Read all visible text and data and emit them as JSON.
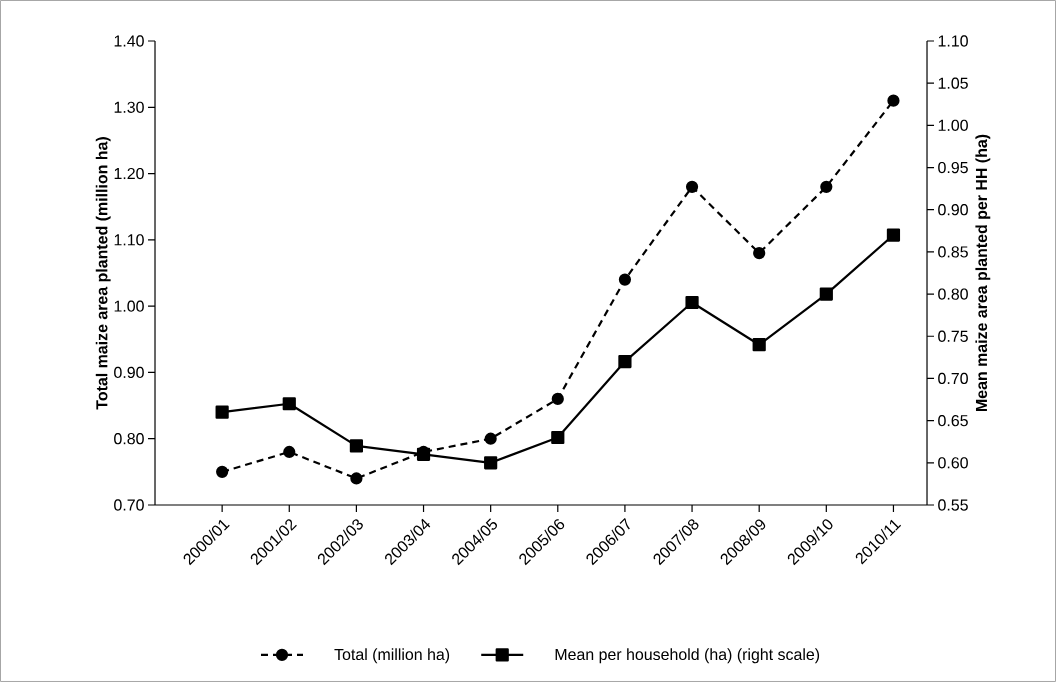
{
  "chart_data": {
    "type": "line",
    "categories": [
      "2000/01",
      "2001/02",
      "2002/03",
      "2003/04",
      "2004/05",
      "2005/06",
      "2006/07",
      "2007/08",
      "2008/09",
      "2009/10",
      "2010/11"
    ],
    "ylabel": "Total maize area planted (million ha)",
    "y2label": "Mean maize area planted per HH (ha)",
    "ylim": [
      0.7,
      1.4
    ],
    "yticks": [
      {
        "value": 0.7,
        "label": "0.70"
      },
      {
        "value": 0.8,
        "label": "0.80"
      },
      {
        "value": 0.9,
        "label": "0.90"
      },
      {
        "value": 1.0,
        "label": "1.00"
      },
      {
        "value": 1.1,
        "label": "1.10"
      },
      {
        "value": 1.2,
        "label": "1.20"
      },
      {
        "value": 1.3,
        "label": "1.30"
      },
      {
        "value": 1.4,
        "label": "1.40"
      }
    ],
    "y2lim": [
      0.55,
      1.1
    ],
    "y2ticks": [
      {
        "value": 0.55,
        "label": "0.55"
      },
      {
        "value": 0.6,
        "label": "0.60"
      },
      {
        "value": 0.65,
        "label": "0.65"
      },
      {
        "value": 0.7,
        "label": "0.70"
      },
      {
        "value": 0.75,
        "label": "0.75"
      },
      {
        "value": 0.8,
        "label": "0.80"
      },
      {
        "value": 0.85,
        "label": "0.85"
      },
      {
        "value": 0.9,
        "label": "0.90"
      },
      {
        "value": 0.95,
        "label": "0.95"
      },
      {
        "value": 1.0,
        "label": "1.00"
      },
      {
        "value": 1.05,
        "label": "1.05"
      },
      {
        "value": 1.1,
        "label": "1.10"
      }
    ],
    "legend": "bottom",
    "series": [
      {
        "name": "Total (million ha)",
        "color": "#000000",
        "axis": "y",
        "line_style": "dashed",
        "marker": "circle",
        "values": [
          0.75,
          0.78,
          0.74,
          0.78,
          0.8,
          0.86,
          1.04,
          1.18,
          1.08,
          1.18,
          1.31
        ]
      },
      {
        "name": "Mean per household (ha) (right scale)",
        "color": "#000000",
        "axis": "y2",
        "line_style": "solid",
        "marker": "square",
        "values": [
          0.66,
          0.67,
          0.62,
          0.61,
          0.6,
          0.63,
          0.72,
          0.79,
          0.74,
          0.8,
          0.87
        ]
      }
    ]
  }
}
